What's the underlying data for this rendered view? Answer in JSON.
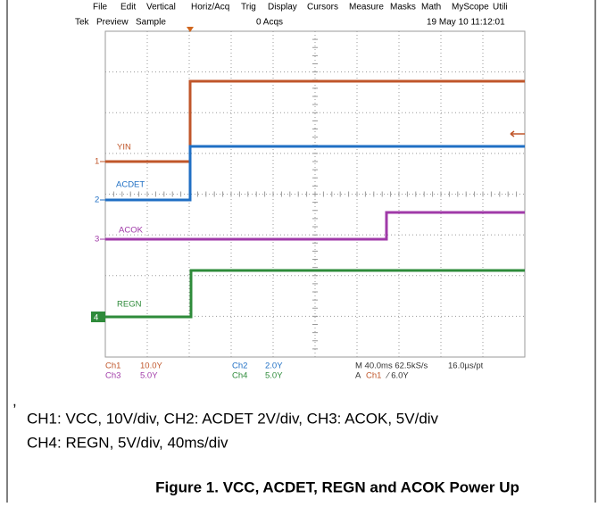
{
  "menu": [
    "File",
    "Edit",
    "Vertical",
    "Horiz/Acq",
    "Trig",
    "Display",
    "Cursors",
    "Measure",
    "Masks",
    "Math",
    "MyScope",
    "Utili"
  ],
  "status": {
    "brand": "Tek",
    "mode": "Preview",
    "acq_mode": "Sample",
    "acqs": "0 Acqs",
    "datetime": "19 May 10 11:12:01"
  },
  "channels": [
    {
      "marker": "1",
      "label": "YIN"
    },
    {
      "marker": "2",
      "label": "ACDET"
    },
    {
      "marker": "3",
      "label": "ACOK"
    },
    {
      "marker": "4",
      "label": "REGN"
    }
  ],
  "readouts": {
    "ch1": {
      "name": "Ch1",
      "scale": "10.0Y"
    },
    "ch3": {
      "name": "Ch3",
      "scale": "5.0Y"
    },
    "ch2": {
      "name": "Ch2",
      "scale": "2.0Y"
    },
    "ch4": {
      "name": "Ch4",
      "scale": "5.0Y"
    },
    "horizontal": "M 40.0ms 62.5kS/s",
    "resolution": "16.0µs/pt",
    "trigger_prefix": "A",
    "trigger_source": "Ch1",
    "trigger_level": "⁄ 6.0Y"
  },
  "caption": {
    "mark": ",",
    "line1": "CH1: VCC, 10V/div, CH2: ACDET 2V/div, CH3: ACOK, 5V/div",
    "line2": "CH4: REGN, 5V/div, 40ms/div",
    "title": "Figure 1. VCC, ACDET, REGN and ACOK Power Up"
  }
}
